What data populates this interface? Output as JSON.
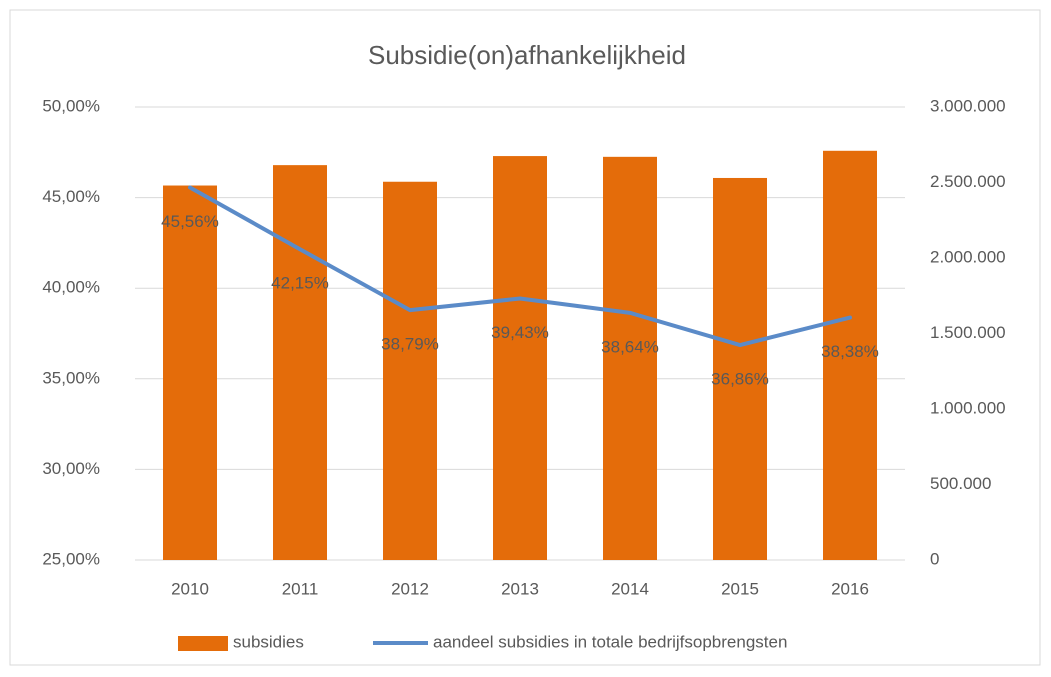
{
  "chart_data": {
    "type": "bar_line",
    "title": "Subsidie(on)afhankelijkheid",
    "categories": [
      "2010",
      "2011",
      "2012",
      "2013",
      "2014",
      "2015",
      "2016"
    ],
    "series": [
      {
        "name": "subsidies",
        "type": "bar",
        "axis": "y2",
        "color": "#e46c0a",
        "values": [
          2480000,
          2615000,
          2505000,
          2675000,
          2670000,
          2530000,
          2710000
        ]
      },
      {
        "name": "aandeel subsidies in totale bedrijfsopbrengsten",
        "type": "line",
        "color": "#5b8bc8",
        "values": [
          45.56,
          42.15,
          38.79,
          39.43,
          38.64,
          36.86,
          38.38
        ],
        "value_labels": [
          "45,56%",
          "42,15%",
          "38,79%",
          "39,43%",
          "38,64%",
          "36,86%",
          "38,38%"
        ]
      }
    ],
    "ylim": [
      25,
      50
    ],
    "yticks": [
      {
        "value": 25,
        "label": "25,00%"
      },
      {
        "value": 30,
        "label": "30,00%"
      },
      {
        "value": 35,
        "label": "35,00%"
      },
      {
        "value": 40,
        "label": "40,00%"
      },
      {
        "value": 45,
        "label": "45,00%"
      },
      {
        "value": 50,
        "label": "50,00%"
      }
    ],
    "y2lim": [
      0,
      3000000
    ],
    "y2ticks": [
      0,
      {
        "value": 500000,
        "label": "500.000"
      },
      {
        "value": 1000000,
        "label": "1.000.000"
      },
      {
        "value": 1500000,
        "label": "1.500.000"
      },
      {
        "value": 2000000,
        "label": "2.000.000"
      },
      {
        "value": 2500000,
        "label": "2.500.000"
      },
      {
        "value": 3000000,
        "label": "3.000.000"
      }
    ],
    "grid": true,
    "legend": "bottom"
  }
}
